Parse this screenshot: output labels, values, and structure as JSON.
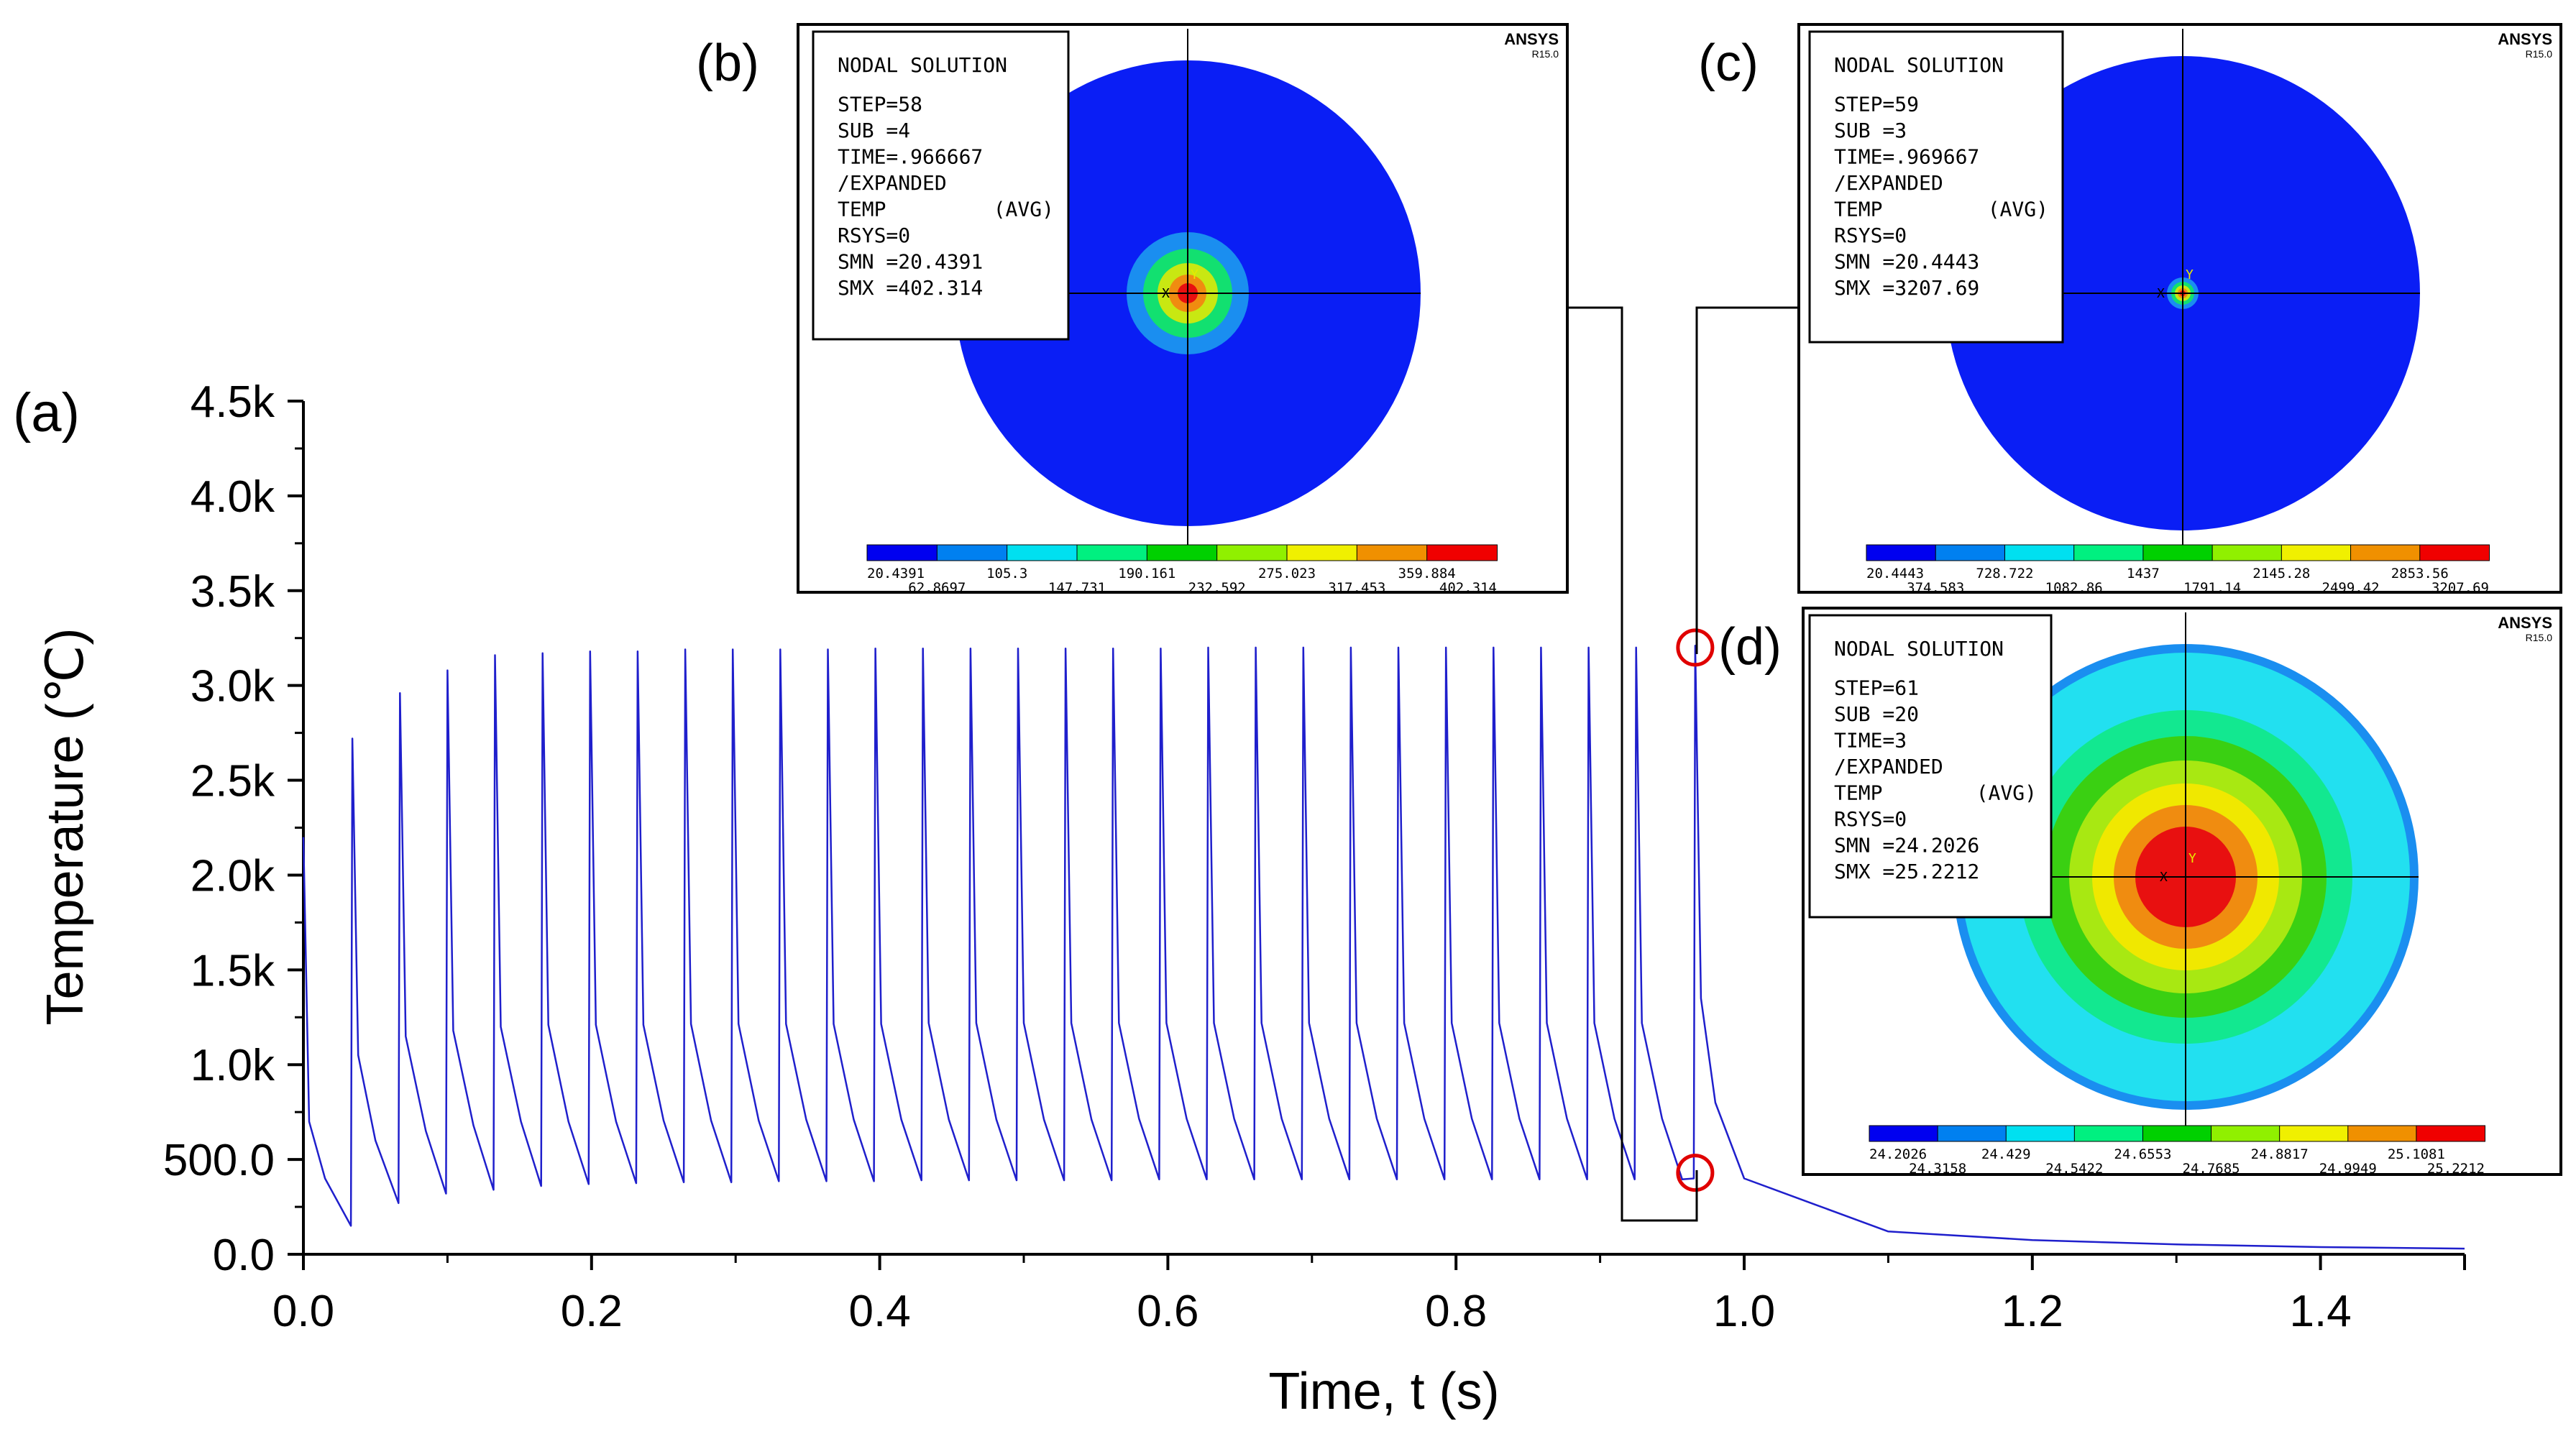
{
  "chart_data": {
    "type": "line",
    "panel_label": "(a)",
    "xlabel": "Time, t (s)",
    "ylabel": "Temperature (℃)",
    "xlim": [
      0,
      1.5
    ],
    "ylim": [
      0,
      4500
    ],
    "x_ticks": [
      {
        "value": 0.0,
        "label": "0.0"
      },
      {
        "value": 0.2,
        "label": "0.2"
      },
      {
        "value": 0.4,
        "label": "0.4"
      },
      {
        "value": 0.6,
        "label": "0.6"
      },
      {
        "value": 0.8,
        "label": "0.8"
      },
      {
        "value": 1.0,
        "label": "1.0"
      },
      {
        "value": 1.2,
        "label": "1.2"
      },
      {
        "value": 1.4,
        "label": "1.4"
      }
    ],
    "y_ticks": [
      {
        "value": 0,
        "label": "0.0"
      },
      {
        "value": 500,
        "label": "500.0"
      },
      {
        "value": 1000,
        "label": "1.0k"
      },
      {
        "value": 1500,
        "label": "1.5k"
      },
      {
        "value": 2000,
        "label": "2.0k"
      },
      {
        "value": 2500,
        "label": "2.5k"
      },
      {
        "value": 3000,
        "label": "3.0k"
      },
      {
        "value": 3500,
        "label": "3.5k"
      },
      {
        "value": 4000,
        "label": "4.0k"
      },
      {
        "value": 4500,
        "label": "4.5k"
      }
    ],
    "series": [
      {
        "name": "Temperature",
        "color": "#1f1fcc",
        "points": [
          [
            0.0,
            2200
          ],
          [
            0.004,
            700
          ],
          [
            0.015,
            400
          ],
          [
            0.033,
            150
          ],
          [
            0.034,
            2720
          ],
          [
            0.038,
            1050
          ],
          [
            0.05,
            600
          ],
          [
            0.066,
            270
          ],
          [
            0.067,
            2960
          ],
          [
            0.071,
            1150
          ],
          [
            0.085,
            650
          ],
          [
            0.099,
            320
          ],
          [
            0.1,
            3080
          ],
          [
            0.104,
            1180
          ],
          [
            0.118,
            680
          ],
          [
            0.132,
            340
          ],
          [
            0.133,
            3160
          ],
          [
            0.137,
            1200
          ],
          [
            0.151,
            700
          ],
          [
            0.165,
            360
          ],
          [
            0.166,
            3170
          ],
          [
            0.17,
            1210
          ],
          [
            0.184,
            700
          ],
          [
            0.198,
            370
          ],
          [
            0.199,
            3180
          ],
          [
            0.203,
            1210
          ],
          [
            0.217,
            700
          ],
          [
            0.231,
            375
          ],
          [
            0.232,
            3180
          ],
          [
            0.236,
            1210
          ],
          [
            0.25,
            705
          ],
          [
            0.264,
            380
          ],
          [
            0.265,
            3190
          ],
          [
            0.269,
            1215
          ],
          [
            0.283,
            705
          ],
          [
            0.297,
            380
          ],
          [
            0.298,
            3190
          ],
          [
            0.302,
            1215
          ],
          [
            0.316,
            705
          ],
          [
            0.33,
            385
          ],
          [
            0.331,
            3190
          ],
          [
            0.335,
            1215
          ],
          [
            0.349,
            710
          ],
          [
            0.363,
            385
          ],
          [
            0.364,
            3190
          ],
          [
            0.368,
            1215
          ],
          [
            0.382,
            710
          ],
          [
            0.396,
            385
          ],
          [
            0.397,
            3195
          ],
          [
            0.401,
            1215
          ],
          [
            0.415,
            710
          ],
          [
            0.429,
            390
          ],
          [
            0.43,
            3195
          ],
          [
            0.434,
            1220
          ],
          [
            0.448,
            710
          ],
          [
            0.462,
            390
          ],
          [
            0.463,
            3195
          ],
          [
            0.467,
            1220
          ],
          [
            0.481,
            710
          ],
          [
            0.495,
            390
          ],
          [
            0.496,
            3195
          ],
          [
            0.5,
            1220
          ],
          [
            0.514,
            710
          ],
          [
            0.528,
            390
          ],
          [
            0.529,
            3195
          ],
          [
            0.533,
            1220
          ],
          [
            0.547,
            710
          ],
          [
            0.561,
            390
          ],
          [
            0.562,
            3195
          ],
          [
            0.566,
            1220
          ],
          [
            0.58,
            715
          ],
          [
            0.594,
            395
          ],
          [
            0.595,
            3195
          ],
          [
            0.599,
            1220
          ],
          [
            0.613,
            715
          ],
          [
            0.627,
            395
          ],
          [
            0.628,
            3200
          ],
          [
            0.632,
            1220
          ],
          [
            0.646,
            715
          ],
          [
            0.66,
            395
          ],
          [
            0.661,
            3200
          ],
          [
            0.665,
            1220
          ],
          [
            0.679,
            715
          ],
          [
            0.693,
            395
          ],
          [
            0.694,
            3200
          ],
          [
            0.698,
            1220
          ],
          [
            0.712,
            715
          ],
          [
            0.726,
            395
          ],
          [
            0.727,
            3200
          ],
          [
            0.731,
            1220
          ],
          [
            0.745,
            715
          ],
          [
            0.759,
            395
          ],
          [
            0.76,
            3200
          ],
          [
            0.764,
            1220
          ],
          [
            0.778,
            715
          ],
          [
            0.792,
            395
          ],
          [
            0.793,
            3200
          ],
          [
            0.797,
            1220
          ],
          [
            0.811,
            715
          ],
          [
            0.825,
            395
          ],
          [
            0.826,
            3200
          ],
          [
            0.83,
            1220
          ],
          [
            0.844,
            715
          ],
          [
            0.858,
            395
          ],
          [
            0.859,
            3200
          ],
          [
            0.863,
            1220
          ],
          [
            0.877,
            715
          ],
          [
            0.891,
            395
          ],
          [
            0.892,
            3200
          ],
          [
            0.896,
            1220
          ],
          [
            0.91,
            715
          ],
          [
            0.924,
            395
          ],
          [
            0.925,
            3200
          ],
          [
            0.929,
            1220
          ],
          [
            0.943,
            715
          ],
          [
            0.957,
            395
          ],
          [
            0.965,
            400
          ],
          [
            0.966,
            3210
          ],
          [
            0.97,
            1350
          ],
          [
            0.98,
            800
          ],
          [
            1.0,
            400
          ],
          [
            1.05,
            260
          ],
          [
            1.1,
            120
          ],
          [
            1.2,
            75
          ],
          [
            1.3,
            52
          ],
          [
            1.4,
            38
          ],
          [
            1.5,
            30
          ]
        ]
      }
    ],
    "markers": [
      {
        "x": 0.966,
        "y": 3200,
        "color": "#e00000",
        "shape": "circle"
      },
      {
        "x": 0.966,
        "y": 430,
        "color": "#e00000",
        "shape": "circle"
      }
    ],
    "insets": [
      {
        "label": "(b)",
        "brand": "ANSYS",
        "version": "R15.0",
        "window_id": "1",
        "info_lines": [
          "NODAL SOLUTION",
          "STEP=58",
          "SUB =4",
          "TIME=.966667",
          "/EXPANDED",
          "TEMP",
          "(AVG)",
          "RSYS=0",
          "SMN =20.4391",
          "SMX =402.314"
        ],
        "background_color": "#0a1ef5",
        "rings": [
          "#0a1ef5",
          "#1a8ef0",
          "#22d6e8",
          "#12e070",
          "#3ad012",
          "#c8e812",
          "#f0e800",
          "#f08c10",
          "#e81010"
        ],
        "colorbar_colors": [
          "#0000f0",
          "#0080f0",
          "#00e0f0",
          "#00f080",
          "#00d000",
          "#90f000",
          "#f0f000",
          "#f09000",
          "#f00000"
        ],
        "colorbar_top_labels": [
          "20.4391",
          "105.3",
          "190.161",
          "275.023",
          "359.884"
        ],
        "colorbar_bottom_labels": [
          "62.8697",
          "147.731",
          "232.592",
          "317.453",
          "402.314"
        ]
      },
      {
        "label": "(c)",
        "brand": "ANSYS",
        "version": "R15.0",
        "window_id": "1",
        "info_lines": [
          "NODAL SOLUTION",
          "STEP=59",
          "SUB =3",
          "TIME=.969667",
          "/EXPANDED",
          "TEMP",
          "(AVG)",
          "RSYS=0",
          "SMN =20.4443",
          "SMX =3207.69"
        ],
        "background_color": "#0a1ef5",
        "rings": [
          "#0a1ef5",
          "#1a8ef0",
          "#22d6e8",
          "#12e070",
          "#3ad012",
          "#c8e812",
          "#f0e800",
          "#f08c10",
          "#e81010"
        ],
        "colorbar_colors": [
          "#0000f0",
          "#0080f0",
          "#00e0f0",
          "#00f080",
          "#00d000",
          "#90f000",
          "#f0f000",
          "#f09000",
          "#f00000"
        ],
        "colorbar_top_labels": [
          "20.4443",
          "728.722",
          "1437",
          "2145.28",
          "2853.56"
        ],
        "colorbar_bottom_labels": [
          "374.583",
          "1082.86",
          "1791.14",
          "2499.42",
          "3207.69"
        ]
      },
      {
        "label": "(d)",
        "brand": "ANSYS",
        "version": "R15.0",
        "window_id": "1",
        "info_lines": [
          "NODAL SOLUTION",
          "STEP=61",
          "SUB =20",
          "TIME=3",
          "/EXPANDED",
          "TEMP",
          "(AVG)",
          "RSYS=0",
          "SMN =24.2026",
          "SMX =25.2212"
        ],
        "background_color": "#22e0f0",
        "rings": [
          "#1a8ef0",
          "#22e0f0",
          "#12e890",
          "#3ad012",
          "#a8e812",
          "#f0e800",
          "#f08c10",
          "#e81010"
        ],
        "colorbar_colors": [
          "#0000f0",
          "#0080f0",
          "#00e0f0",
          "#00f080",
          "#00d000",
          "#90f000",
          "#f0f000",
          "#f09000",
          "#f00000"
        ],
        "colorbar_top_labels": [
          "24.2026",
          "24.429",
          "24.6553",
          "24.8817",
          "25.1081"
        ],
        "colorbar_bottom_labels": [
          "24.3158",
          "24.5422",
          "24.7685",
          "24.9949",
          "25.2212"
        ]
      }
    ],
    "axis_glyphs": {
      "x": "X",
      "y": "Y"
    }
  }
}
